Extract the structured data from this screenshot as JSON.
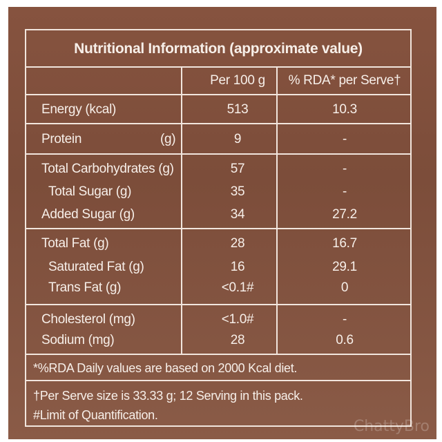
{
  "title": "Nutritional Information (approximate value)",
  "headers": {
    "per100": "Per 100 g",
    "rda": "% RDA* per Serve†"
  },
  "rows": [
    {
      "label": "Energy (kcal)",
      "unit": "",
      "per100": "513",
      "rda": "10.3"
    },
    {
      "label": "Protein",
      "unit": "(g)",
      "per100": "9",
      "rda": "-"
    },
    {
      "label": "Total Carbohydrates (g)",
      "unit": "",
      "per100": "57",
      "rda": "-"
    },
    {
      "label": "Total Sugar (g)",
      "unit": "",
      "per100": "35",
      "rda": "-"
    },
    {
      "label": "Added Sugar (g)",
      "unit": "",
      "per100": "34",
      "rda": "27.2"
    },
    {
      "label": "Total Fat (g)",
      "unit": "",
      "per100": "28",
      "rda": "16.7"
    },
    {
      "label": "Saturated Fat (g)",
      "unit": "",
      "per100": "16",
      "rda": "29.1"
    },
    {
      "label": "Trans Fat (g)",
      "unit": "",
      "per100": "<0.1#",
      "rda": "0"
    },
    {
      "label": "Cholesterol (mg)",
      "unit": "",
      "per100": "<1.0#",
      "rda": "-"
    },
    {
      "label": "Sodium (mg)",
      "unit": "",
      "per100": "28",
      "rda": "0.6"
    }
  ],
  "footnotes": {
    "rda_note": "*%RDA Daily values are based on 2000 Kcal diet.",
    "serve_note": "†Per Serve size is 33.33 g; 12 Serving in this pack.",
    "loq_note": "#Limit of Quantification."
  },
  "watermark": "ChattyBro",
  "colors": {
    "background": "#7c4d3a",
    "lines": "#f2e6de",
    "text": "#f7efe9"
  }
}
